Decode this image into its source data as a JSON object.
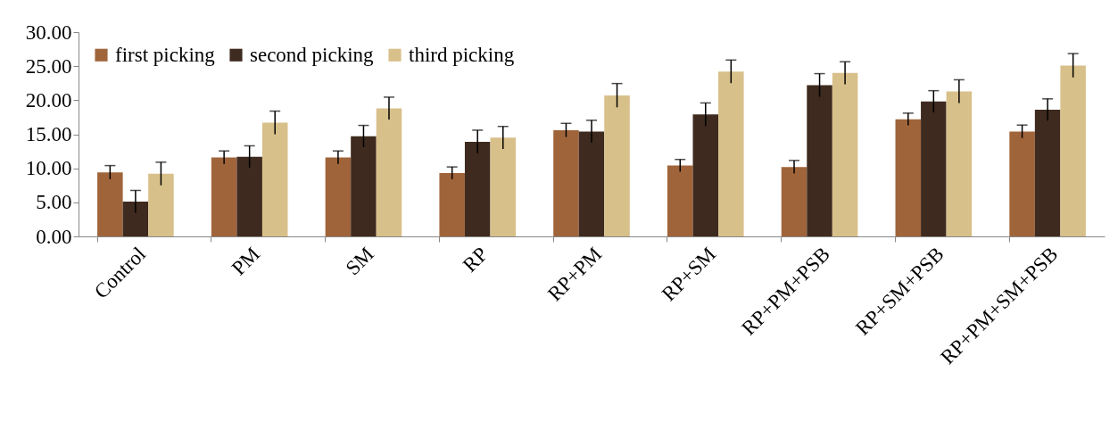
{
  "chart_data": {
    "type": "bar",
    "categories": [
      "Control",
      "PM",
      "SM",
      "RP",
      "RP+PM",
      "RP+SM",
      "RP+PM+PSB",
      "RP+SM+PSB",
      "RP+PM+SM+PSB"
    ],
    "series": [
      {
        "name": "first picking",
        "color": "#a0643a",
        "values": [
          9.4,
          11.6,
          11.6,
          9.3,
          15.6,
          10.4,
          10.2,
          17.2,
          15.4
        ],
        "errors": [
          1.0,
          0.95,
          0.95,
          0.9,
          1.0,
          0.9,
          0.95,
          0.9,
          0.95
        ]
      },
      {
        "name": "second picking",
        "color": "#3e2a1e",
        "values": [
          5.1,
          11.7,
          14.7,
          13.9,
          15.4,
          17.9,
          22.2,
          19.8,
          18.6
        ],
        "errors": [
          1.65,
          1.6,
          1.6,
          1.7,
          1.65,
          1.7,
          1.7,
          1.6,
          1.6
        ]
      },
      {
        "name": "third picking",
        "color": "#d8c08a",
        "values": [
          9.2,
          16.7,
          18.8,
          14.5,
          20.7,
          24.2,
          24.0,
          21.3,
          25.1
        ],
        "errors": [
          1.7,
          1.7,
          1.65,
          1.65,
          1.75,
          1.7,
          1.65,
          1.7,
          1.75
        ]
      }
    ],
    "ylim": [
      0,
      30
    ],
    "yticks": [
      {
        "value": 0,
        "label": "0.00"
      },
      {
        "value": 5,
        "label": "5.00"
      },
      {
        "value": 10,
        "label": "10.00"
      },
      {
        "value": 15,
        "label": "15.00"
      },
      {
        "value": 20,
        "label": "20.00"
      },
      {
        "value": 25,
        "label": "25.00"
      },
      {
        "value": 30,
        "label": "30.00"
      }
    ],
    "grid": false,
    "legend": "top left"
  }
}
